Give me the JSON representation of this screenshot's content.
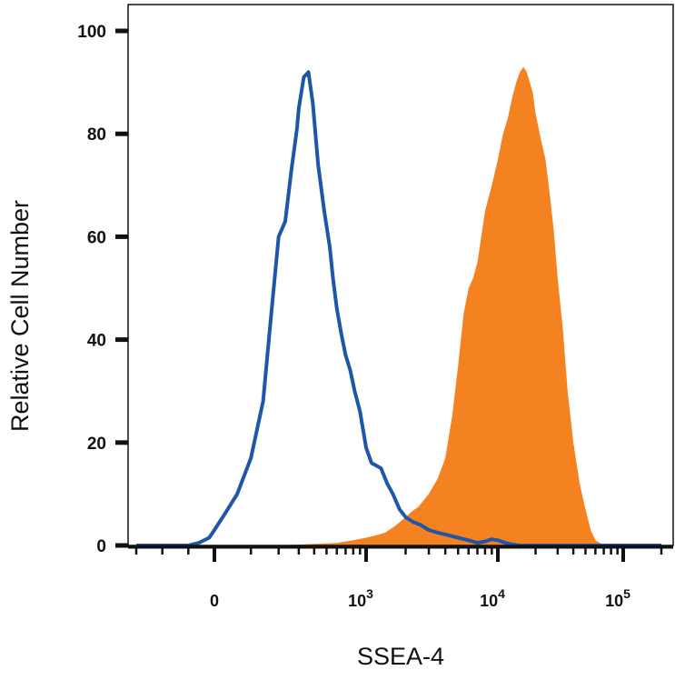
{
  "chart_data": {
    "type": "area",
    "xlabel": "SSEA-4",
    "ylabel": "Relative Cell Number",
    "ylim": [
      0,
      100
    ],
    "xscale": "biexponential",
    "yticks": [
      0,
      20,
      40,
      60,
      80,
      100
    ],
    "xticks": [
      {
        "value": 0,
        "label": "0",
        "exp": ""
      },
      {
        "value": 1000,
        "label": "10",
        "exp": "3"
      },
      {
        "value": 10000,
        "label": "10",
        "exp": "4"
      },
      {
        "value": 100000,
        "label": "10",
        "exp": "5"
      }
    ],
    "legend": "none",
    "grid": false,
    "series": [
      {
        "style": "outline",
        "color": "#1f56a8",
        "x": [
          -300,
          -200,
          -100,
          -60,
          -20,
          0,
          30,
          60,
          100,
          140,
          170,
          200,
          230,
          260,
          290,
          300,
          330,
          360,
          390,
          430,
          480,
          530,
          560,
          600,
          650,
          700,
          760,
          820,
          900,
          1000,
          1100,
          1200,
          1300,
          1450,
          1600,
          1800,
          2000,
          2300,
          2600,
          3000,
          3500,
          4200,
          5000,
          6000,
          7000,
          8000,
          9000,
          10000,
          11500,
          13000,
          15000,
          20000,
          40000,
          100000,
          200000
        ],
        "y": [
          0,
          0,
          0,
          0.5,
          1.5,
          3,
          6.5,
          10,
          17,
          28,
          45,
          60,
          63,
          73,
          81,
          85,
          91,
          92,
          86,
          74,
          65,
          58,
          52,
          46,
          41,
          37,
          34,
          30,
          26,
          19,
          16,
          15.5,
          15,
          12,
          10,
          7,
          5.5,
          4.5,
          4,
          3,
          2.5,
          2,
          1.5,
          1,
          0.5,
          0.8,
          1.2,
          1,
          0.5,
          0.2,
          0,
          0,
          0,
          0,
          0
        ]
      },
      {
        "style": "filled",
        "color": "#f58220",
        "x": [
          -300,
          0,
          200,
          400,
          600,
          800,
          1000,
          1200,
          1400,
          1600,
          1800,
          2000,
          2200,
          2500,
          3000,
          3500,
          4000,
          4500,
          5000,
          5500,
          6000,
          6500,
          7000,
          8000,
          9000,
          10000,
          11000,
          12000,
          13000,
          14000,
          15000,
          16000,
          17000,
          18000,
          19000,
          20000,
          22000,
          24000,
          26000,
          28000,
          30000,
          33000,
          36000,
          40000,
          45000,
          50000,
          55000,
          60000,
          65000,
          70000,
          80000,
          90000,
          100000,
          120000,
          150000,
          200000
        ],
        "y": [
          0,
          0,
          0,
          0.3,
          0.5,
          1,
          1.5,
          2,
          2.5,
          3.5,
          4.5,
          5.5,
          6.5,
          7.5,
          10,
          13,
          17,
          25,
          35,
          45,
          50,
          52,
          55,
          65,
          70,
          75,
          80,
          83,
          87,
          90,
          92,
          93,
          92,
          90,
          88,
          84,
          79,
          75,
          68,
          61,
          52,
          42,
          30,
          20,
          12,
          7,
          3,
          1,
          0.5,
          0.2,
          0,
          0,
          0,
          0,
          0,
          0
        ]
      }
    ]
  }
}
